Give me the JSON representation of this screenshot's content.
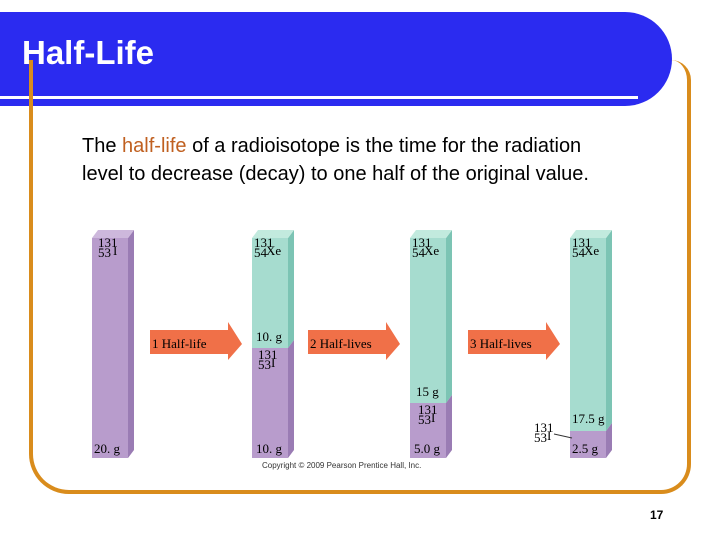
{
  "header": {
    "title": "Half-Life"
  },
  "body": {
    "text_before": "The ",
    "highlight": "half-life",
    "text_after": " of a radioisotope is the time for the radiation level to decrease (decay) to one half of the original  value."
  },
  "diagram": {
    "arrows": [
      "1 Half-life",
      "2 Half-lives",
      "3 Half-lives"
    ],
    "columns": [
      {
        "top_symbol": {
          "mass": "131",
          "atomic": "53",
          "element": "I"
        },
        "iodine_mass": "20. g"
      },
      {
        "top_symbol": {
          "mass": "131",
          "atomic": "54",
          "element": "Xe"
        },
        "xenon_mass": "10. g",
        "iodine_symbol": {
          "mass": "131",
          "atomic": "53",
          "element": "I"
        },
        "iodine_mass": "10. g"
      },
      {
        "top_symbol": {
          "mass": "131",
          "atomic": "54",
          "element": "Xe"
        },
        "xenon_mass": "15 g",
        "iodine_symbol": {
          "mass": "131",
          "atomic": "53",
          "element": "I"
        },
        "iodine_mass": "5.0 g"
      },
      {
        "top_symbol": {
          "mass": "131",
          "atomic": "54",
          "element": "Xe"
        },
        "xenon_mass": "17.5 g",
        "iodine_symbol": {
          "mass": "131",
          "atomic": "53",
          "element": "I"
        },
        "iodine_mass": "2.5 g"
      }
    ],
    "colors": {
      "iodine": "#b89ccc",
      "iodine_side": "#9a7cb4",
      "xenon": "#a6dccf",
      "xenon_side": "#7cc4b4",
      "arrow": "#f07048"
    }
  },
  "copyright": "Copyright © 2009 Pearson Prentice Hall, Inc.",
  "page_number": "17"
}
